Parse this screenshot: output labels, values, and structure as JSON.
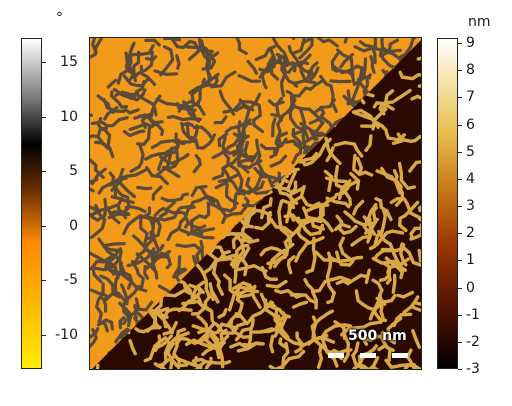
{
  "left_colorbar": {
    "unit": "°",
    "ticks": [
      "15",
      "10",
      "5",
      "0",
      "-5",
      "-10"
    ],
    "colors": [
      "#ffee00",
      "#ff8a00",
      "#6b2f00",
      "#000000",
      "#7a7a7a",
      "#ffffff"
    ]
  },
  "right_colorbar": {
    "unit": "nm",
    "ticks": [
      "9",
      "8",
      "7",
      "6",
      "5",
      "4",
      "3",
      "2",
      "1",
      "0",
      "-1",
      "-2",
      "-3"
    ],
    "colors": [
      "#000000",
      "#4a0f00",
      "#9a3a00",
      "#d88a10",
      "#f2d060",
      "#ffffff"
    ]
  },
  "image": {
    "scale_bar_label": "500 nm",
    "phase_colors": [
      "#f29a1a",
      "#5a4a3a"
    ],
    "height_colors": [
      "#2a0a00",
      "#e3b14a"
    ]
  }
}
